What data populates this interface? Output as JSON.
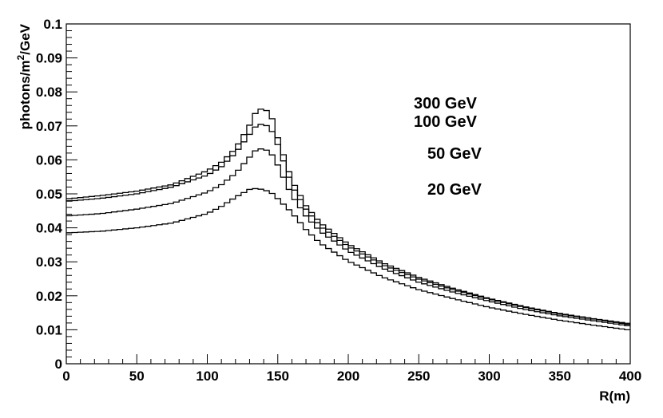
{
  "chart_data": {
    "type": "line",
    "style": "step-histogram",
    "xlabel": "R(m)",
    "ylabel_parts": [
      "photons/m",
      "2",
      "/GeV"
    ],
    "xlim": [
      0,
      400
    ],
    "ylim": [
      0,
      0.1
    ],
    "x_ticks": [
      0,
      50,
      100,
      150,
      200,
      250,
      300,
      350,
      400
    ],
    "x_tick_labels": [
      "0",
      "50",
      "100",
      "150",
      "200",
      "250",
      "300",
      "350",
      "400"
    ],
    "y_ticks": [
      0,
      0.01,
      0.02,
      0.03,
      0.04,
      0.05,
      0.06,
      0.07,
      0.08,
      0.09,
      0.1
    ],
    "y_tick_labels": [
      "0",
      "0.01",
      "0.02",
      "0.03",
      "0.04",
      "0.05",
      "0.06",
      "0.07",
      "0.08",
      "0.09",
      "0.1"
    ],
    "grid": false,
    "line_color": "#000000",
    "x": [
      0,
      25,
      50,
      75,
      100,
      110,
      120,
      130,
      135,
      140,
      145,
      150,
      160,
      170,
      180,
      200,
      225,
      250,
      275,
      300,
      325,
      350,
      375,
      400
    ],
    "series": [
      {
        "name": "300 GeV",
        "values": [
          0.0485,
          0.0495,
          0.0508,
          0.0527,
          0.0568,
          0.0593,
          0.0633,
          0.0702,
          0.0745,
          0.0752,
          0.0735,
          0.0665,
          0.054,
          0.0465,
          0.0415,
          0.0352,
          0.0296,
          0.0254,
          0.0221,
          0.0192,
          0.0168,
          0.0148,
          0.0132,
          0.0118
        ]
      },
      {
        "name": "100 GeV",
        "values": [
          0.0478,
          0.0487,
          0.05,
          0.052,
          0.0555,
          0.058,
          0.062,
          0.0675,
          0.0702,
          0.0706,
          0.0693,
          0.0645,
          0.0525,
          0.0455,
          0.0405,
          0.0345,
          0.029,
          0.0249,
          0.0217,
          0.019,
          0.0166,
          0.0146,
          0.0131,
          0.0115
        ]
      },
      {
        "name": "50 GeV",
        "values": [
          0.0435,
          0.0442,
          0.0455,
          0.0472,
          0.0505,
          0.0527,
          0.056,
          0.0608,
          0.0631,
          0.0633,
          0.0622,
          0.0585,
          0.0495,
          0.0435,
          0.039,
          0.0332,
          0.028,
          0.024,
          0.021,
          0.0184,
          0.016,
          0.0141,
          0.0126,
          0.0111
        ]
      },
      {
        "name": "20 GeV",
        "values": [
          0.0385,
          0.039,
          0.04,
          0.0414,
          0.0442,
          0.0463,
          0.049,
          0.0513,
          0.0516,
          0.0512,
          0.0505,
          0.0486,
          0.0445,
          0.0395,
          0.0355,
          0.0302,
          0.0254,
          0.0218,
          0.0191,
          0.0166,
          0.0146,
          0.0128,
          0.0113,
          0.0099
        ]
      }
    ]
  }
}
